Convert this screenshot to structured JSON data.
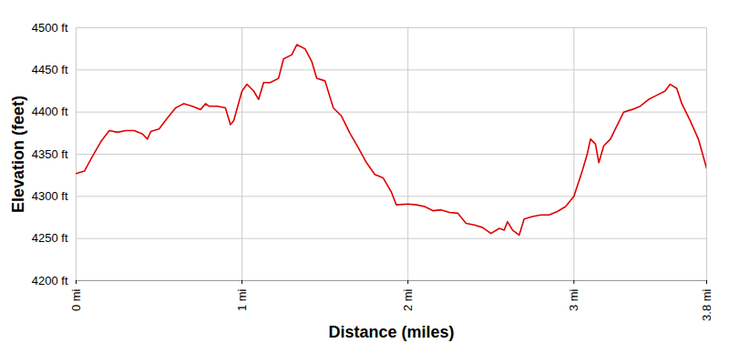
{
  "chart_data": {
    "type": "line",
    "x_label": "Distance (miles)",
    "y_label": "Elevation (feet)",
    "color": "#e00000",
    "grid": true,
    "xlim": [
      0,
      3.8
    ],
    "ylim": [
      4200,
      4500
    ],
    "xticks": [
      {
        "value": 0,
        "label": "0 mi"
      },
      {
        "value": 1,
        "label": "1 mi"
      },
      {
        "value": 2,
        "label": "2 mi"
      },
      {
        "value": 3,
        "label": "3 mi"
      },
      {
        "value": 3.8,
        "label": "3.8 mi"
      }
    ],
    "yticks": [
      {
        "value": 4200,
        "label": "4200 ft"
      },
      {
        "value": 4250,
        "label": "4250 ft"
      },
      {
        "value": 4300,
        "label": "4300 ft"
      },
      {
        "value": 4350,
        "label": "4350 ft"
      },
      {
        "value": 4400,
        "label": "4400 ft"
      },
      {
        "value": 4450,
        "label": "4450 ft"
      },
      {
        "value": 4500,
        "label": "4500 ft"
      }
    ],
    "x": [
      0,
      0.05,
      0.1,
      0.15,
      0.2,
      0.25,
      0.3,
      0.35,
      0.4,
      0.43,
      0.45,
      0.5,
      0.55,
      0.6,
      0.65,
      0.7,
      0.75,
      0.78,
      0.8,
      0.85,
      0.9,
      0.93,
      0.95,
      1.0,
      1.03,
      1.07,
      1.1,
      1.13,
      1.17,
      1.22,
      1.25,
      1.3,
      1.33,
      1.38,
      1.42,
      1.45,
      1.5,
      1.55,
      1.6,
      1.65,
      1.7,
      1.75,
      1.8,
      1.85,
      1.9,
      1.93,
      2.0,
      2.05,
      2.1,
      2.15,
      2.2,
      2.25,
      2.3,
      2.35,
      2.4,
      2.45,
      2.5,
      2.55,
      2.58,
      2.6,
      2.63,
      2.67,
      2.7,
      2.75,
      2.8,
      2.85,
      2.9,
      2.95,
      3.0,
      3.05,
      3.08,
      3.1,
      3.13,
      3.15,
      3.18,
      3.22,
      3.25,
      3.3,
      3.35,
      3.4,
      3.45,
      3.5,
      3.55,
      3.58,
      3.62,
      3.65,
      3.7,
      3.75,
      3.8
    ],
    "values": [
      4327,
      4330,
      4348,
      4365,
      4378,
      4376,
      4378,
      4378,
      4374,
      4368,
      4377,
      4380,
      4393,
      4405,
      4410,
      4407,
      4403,
      4410,
      4407,
      4407,
      4405,
      4385,
      4390,
      4425,
      4433,
      4425,
      4415,
      4435,
      4435,
      4440,
      4463,
      4468,
      4480,
      4475,
      4460,
      4440,
      4437,
      4405,
      4395,
      4375,
      4358,
      4340,
      4326,
      4322,
      4305,
      4290,
      4291,
      4290,
      4288,
      4283,
      4284,
      4281,
      4280,
      4268,
      4266,
      4263,
      4256,
      4262,
      4260,
      4270,
      4260,
      4254,
      4273,
      4276,
      4278,
      4278,
      4282,
      4288,
      4300,
      4330,
      4350,
      4368,
      4362,
      4340,
      4360,
      4368,
      4380,
      4400,
      4403,
      4407,
      4415,
      4420,
      4425,
      4433,
      4428,
      4410,
      4390,
      4368,
      4333
    ]
  }
}
